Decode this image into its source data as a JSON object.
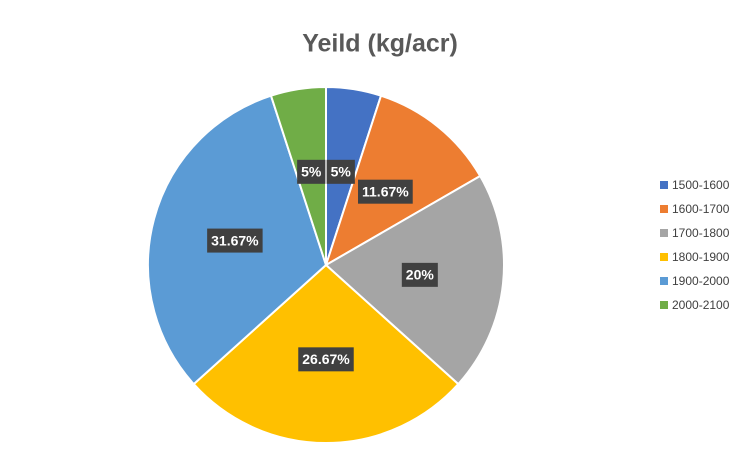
{
  "chart_data": {
    "type": "pie",
    "title": "Yeild (kg/acr)",
    "categories": [
      "1500-1600",
      "1600-1700",
      "1700-1800",
      "1800-1900",
      "1900-2000",
      "2000-2100"
    ],
    "values": [
      5,
      11.67,
      20,
      26.67,
      31.67,
      5
    ],
    "value_labels": [
      "5%",
      "11.67%",
      "20%",
      "26.67%",
      "31.67%",
      "5%"
    ],
    "colors": [
      "#4472c4",
      "#ed7d31",
      "#a5a5a5",
      "#ffc000",
      "#5b9bd5",
      "#70ad47"
    ],
    "legend": "right"
  }
}
